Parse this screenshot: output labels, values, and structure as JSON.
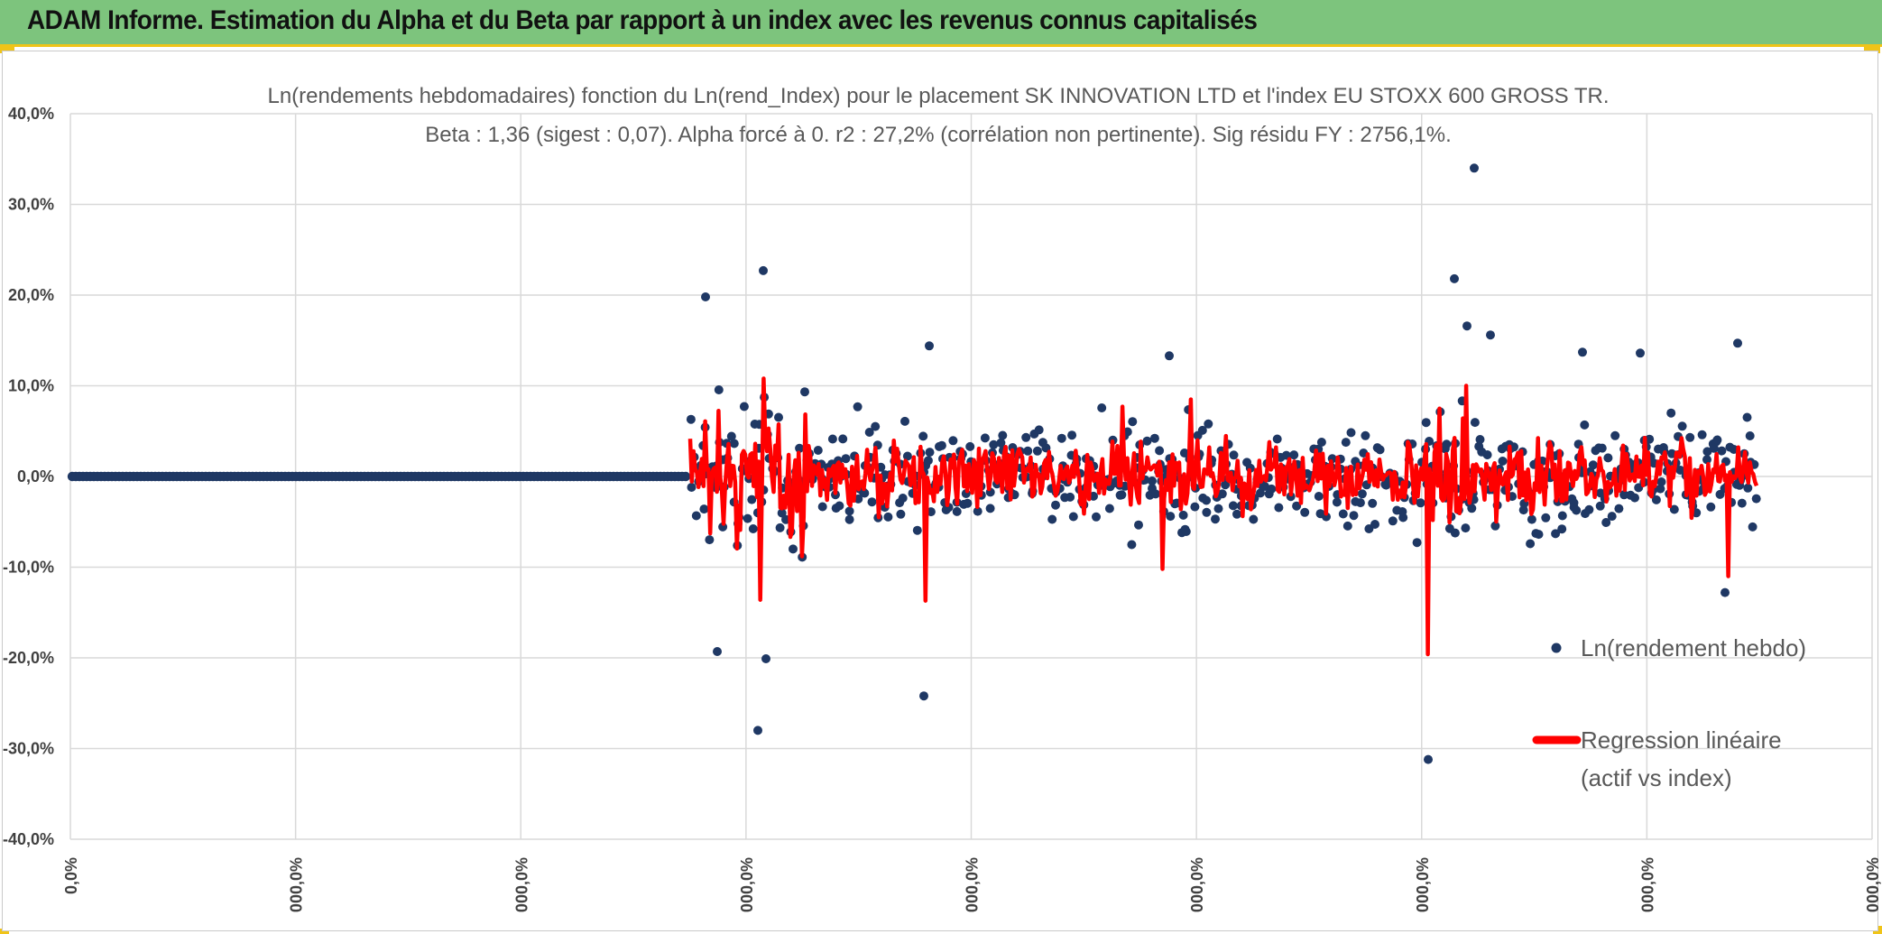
{
  "header": {
    "title": "ADAM Informe. Estimation du Alpha et du Beta par rapport à un index avec les revenus connus capitalisés"
  },
  "colors": {
    "header_bg": "#7dc47d",
    "accent": "#f0c419",
    "points": "#1f3864",
    "regression": "#ff0000",
    "grid": "#d9d9d9"
  },
  "chart_data": {
    "type": "scatter",
    "title": "Ln(rendements hebdomadaires) fonction du Ln(rend_Index) pour le placement SK INNOVATION LTD et l'index EU STOXX 600 GROSS TR.",
    "subtitle": "Beta : 1,36 (sigest : 0,07). Alpha forcé à 0. r2 : 27,2% (corrélation non pertinente). Sig résidu FY : 2756,1%.",
    "y_ticks": [
      "40,0%",
      "30,0%",
      "20,0%",
      "10,0%",
      "0,0%",
      "-10,0%",
      "-20,0%",
      "-30,0%",
      "-40,0%"
    ],
    "x_ticks": [
      "0,0%",
      "000,0%",
      "000,0%",
      "000,0%",
      "000,0%",
      "000,0%",
      "000,0%",
      "000,0%",
      "000,0%"
    ],
    "ylim": [
      -40,
      40
    ],
    "grid": true,
    "legend_position": "right",
    "series": [
      {
        "name": "Ln(rendement hebdo)",
        "kind": "points",
        "notable_values": [
          19.8,
          22.7,
          14.4,
          -24.2,
          -28.0,
          -19.3,
          -20.1,
          13.3,
          34.0,
          21.8,
          16.6,
          15.6,
          -31.2,
          13.7,
          13.6,
          14.7,
          -12.8
        ]
      },
      {
        "name": "Regression linéaire (actif vs index)",
        "kind": "line",
        "notable_values": [
          10.8,
          -13.6,
          -13.7,
          7.7,
          -10.2,
          8.5,
          -19.6,
          10.0,
          -11.0
        ]
      }
    ],
    "legend": [
      {
        "label": "Ln(rendement hebdo)"
      },
      {
        "label_line1": "Regression linéaire",
        "label_line2": "(actif vs index)"
      }
    ]
  }
}
